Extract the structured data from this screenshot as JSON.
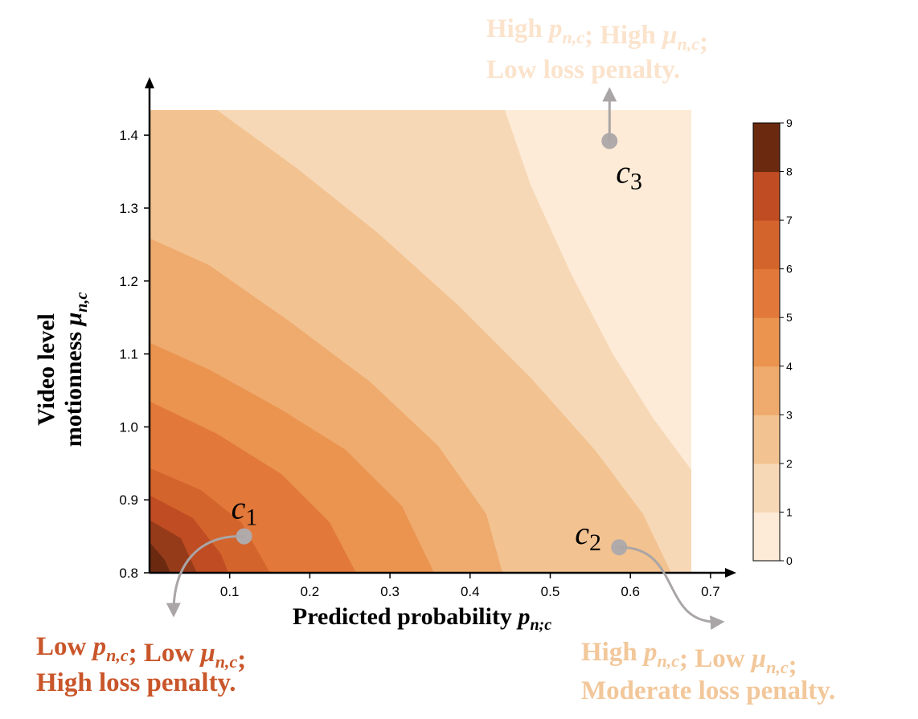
{
  "chart_data": {
    "type": "contour",
    "xlabel": {
      "text": "Predicted probability ",
      "sym": "p",
      "sub": "n;c"
    },
    "ylabel": {
      "line1": "Video level",
      "line2": "motionness ",
      "sym": "μ",
      "sub": "n,c"
    },
    "x_ticks": [
      0.1,
      0.2,
      0.3,
      0.4,
      0.5,
      0.6,
      0.7
    ],
    "y_ticks": [
      0.8,
      0.9,
      1.0,
      1.1,
      1.2,
      1.3,
      1.4
    ],
    "x_range": [
      0.0,
      0.68
    ],
    "y_range": [
      0.8,
      1.435
    ],
    "colorbar": {
      "ticks": [
        0,
        1,
        2,
        3,
        4,
        5,
        6,
        7,
        8,
        9
      ],
      "range": [
        0,
        9
      ]
    },
    "contour_levels": [
      {
        "level": 0,
        "color": "#fdebd7"
      },
      {
        "level": 1,
        "color": "#f7d8b6"
      },
      {
        "level": 2,
        "color": "#f2c290"
      },
      {
        "level": 3,
        "color": "#efaa6d"
      },
      {
        "level": 4,
        "color": "#ea9450"
      },
      {
        "level": 5,
        "color": "#e2793b"
      },
      {
        "level": 6,
        "color": "#d3642c"
      },
      {
        "level": 7,
        "color": "#bf4c22"
      },
      {
        "level": 8,
        "color": "#963b1a"
      },
      {
        "level": 9,
        "color": "#6b2a10"
      }
    ],
    "points": [
      {
        "id": "c1",
        "label": "c",
        "sub": "1",
        "x": 0.118,
        "y": 0.85
      },
      {
        "id": "c2",
        "label": "c",
        "sub": "2",
        "x": 0.586,
        "y": 0.835
      },
      {
        "id": "c3",
        "label": "c",
        "sub": "3",
        "x": 0.574,
        "y": 1.392
      }
    ],
    "annotations": [
      {
        "id": "c1",
        "line1": [
          {
            "t": "Low "
          },
          {
            "sym": "p",
            "sub": "n,c"
          },
          {
            "t": "; Low "
          },
          {
            "sym": "μ",
            "sub": "n,c"
          },
          {
            "t": ";"
          }
        ],
        "line2": "High loss penalty.",
        "color": "#c9562a"
      },
      {
        "id": "c2",
        "line1": [
          {
            "t": "High "
          },
          {
            "sym": "p",
            "sub": "n,c"
          },
          {
            "t": "; Low "
          },
          {
            "sym": "μ",
            "sub": "n,c"
          },
          {
            "t": ";"
          }
        ],
        "line2": "Moderate loss penalty.",
        "color": "#f2c79a"
      },
      {
        "id": "c3",
        "line1": [
          {
            "t": "High "
          },
          {
            "sym": "p",
            "sub": "n,c"
          },
          {
            "t": "; High "
          },
          {
            "sym": "μ",
            "sub": "n,c"
          },
          {
            "t": ";"
          }
        ],
        "line2": "Low loss penalty.",
        "color": "#fbe3cc"
      }
    ]
  }
}
